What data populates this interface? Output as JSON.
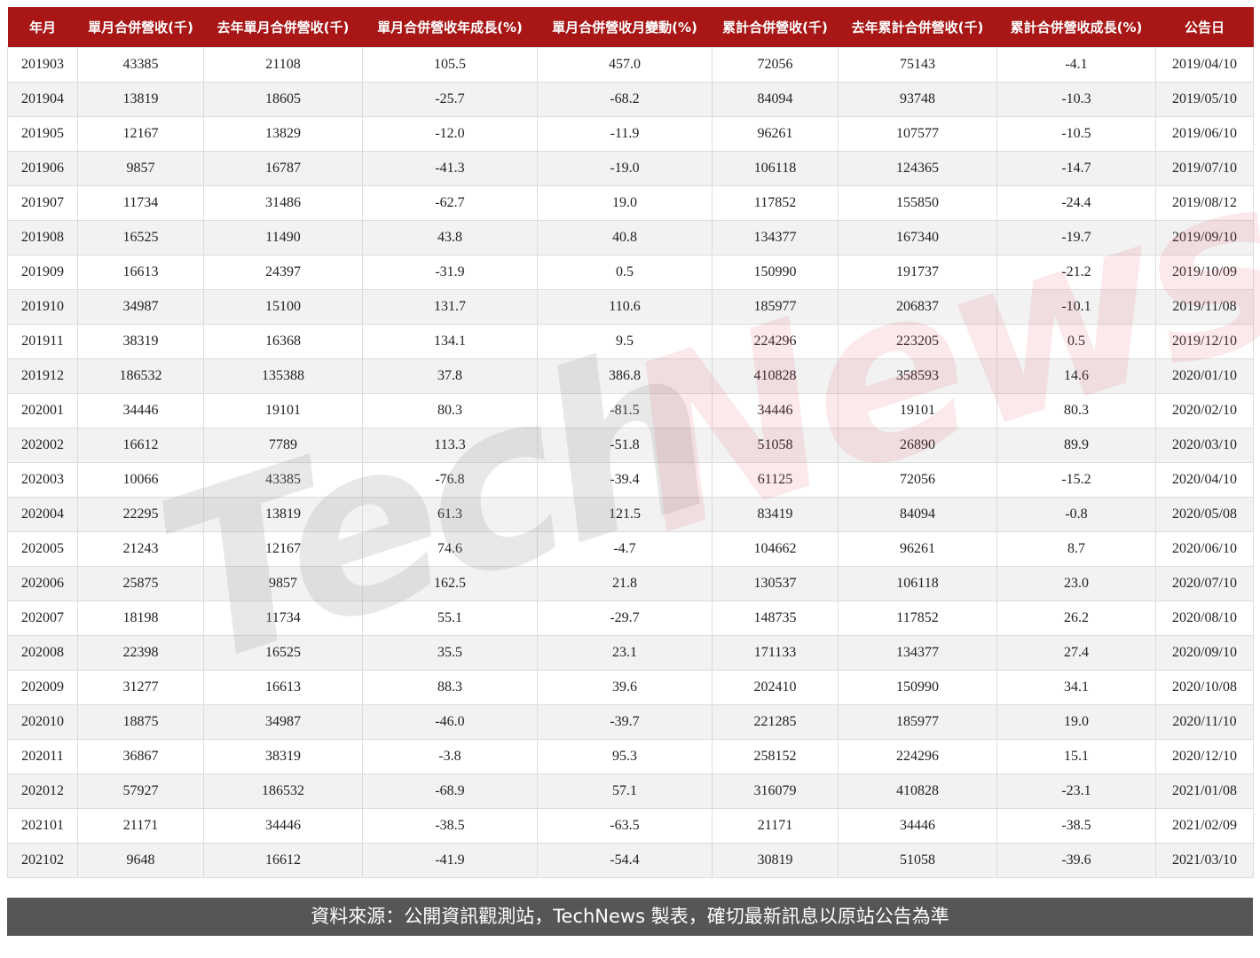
{
  "watermark": {
    "logo_text_part1": "Tech",
    "logo_text_part2": "News"
  },
  "table": {
    "headers": [
      "年月",
      "單月合併營收(千)",
      "去年單月合併營收(千)",
      "單月合併營收年成長(%)",
      "單月合併營收月變動(%)",
      "累計合併營收(千)",
      "去年累計合併營收(千)",
      "累計合併營收成長(%)",
      "公告日"
    ],
    "rows": [
      [
        "201903",
        "43385",
        "21108",
        "105.5",
        "457.0",
        "72056",
        "75143",
        "-4.1",
        "2019/04/10"
      ],
      [
        "201904",
        "13819",
        "18605",
        "-25.7",
        "-68.2",
        "84094",
        "93748",
        "-10.3",
        "2019/05/10"
      ],
      [
        "201905",
        "12167",
        "13829",
        "-12.0",
        "-11.9",
        "96261",
        "107577",
        "-10.5",
        "2019/06/10"
      ],
      [
        "201906",
        "9857",
        "16787",
        "-41.3",
        "-19.0",
        "106118",
        "124365",
        "-14.7",
        "2019/07/10"
      ],
      [
        "201907",
        "11734",
        "31486",
        "-62.7",
        "19.0",
        "117852",
        "155850",
        "-24.4",
        "2019/08/12"
      ],
      [
        "201908",
        "16525",
        "11490",
        "43.8",
        "40.8",
        "134377",
        "167340",
        "-19.7",
        "2019/09/10"
      ],
      [
        "201909",
        "16613",
        "24397",
        "-31.9",
        "0.5",
        "150990",
        "191737",
        "-21.2",
        "2019/10/09"
      ],
      [
        "201910",
        "34987",
        "15100",
        "131.7",
        "110.6",
        "185977",
        "206837",
        "-10.1",
        "2019/11/08"
      ],
      [
        "201911",
        "38319",
        "16368",
        "134.1",
        "9.5",
        "224296",
        "223205",
        "0.5",
        "2019/12/10"
      ],
      [
        "201912",
        "186532",
        "135388",
        "37.8",
        "386.8",
        "410828",
        "358593",
        "14.6",
        "2020/01/10"
      ],
      [
        "202001",
        "34446",
        "19101",
        "80.3",
        "-81.5",
        "34446",
        "19101",
        "80.3",
        "2020/02/10"
      ],
      [
        "202002",
        "16612",
        "7789",
        "113.3",
        "-51.8",
        "51058",
        "26890",
        "89.9",
        "2020/03/10"
      ],
      [
        "202003",
        "10066",
        "43385",
        "-76.8",
        "-39.4",
        "61125",
        "72056",
        "-15.2",
        "2020/04/10"
      ],
      [
        "202004",
        "22295",
        "13819",
        "61.3",
        "121.5",
        "83419",
        "84094",
        "-0.8",
        "2020/05/08"
      ],
      [
        "202005",
        "21243",
        "12167",
        "74.6",
        "-4.7",
        "104662",
        "96261",
        "8.7",
        "2020/06/10"
      ],
      [
        "202006",
        "25875",
        "9857",
        "162.5",
        "21.8",
        "130537",
        "106118",
        "23.0",
        "2020/07/10"
      ],
      [
        "202007",
        "18198",
        "11734",
        "55.1",
        "-29.7",
        "148735",
        "117852",
        "26.2",
        "2020/08/10"
      ],
      [
        "202008",
        "22398",
        "16525",
        "35.5",
        "23.1",
        "171133",
        "134377",
        "27.4",
        "2020/09/10"
      ],
      [
        "202009",
        "31277",
        "16613",
        "88.3",
        "39.6",
        "202410",
        "150990",
        "34.1",
        "2020/10/08"
      ],
      [
        "202010",
        "18875",
        "34987",
        "-46.0",
        "-39.7",
        "221285",
        "185977",
        "19.0",
        "2020/11/10"
      ],
      [
        "202011",
        "36867",
        "38319",
        "-3.8",
        "95.3",
        "258152",
        "224296",
        "15.1",
        "2020/12/10"
      ],
      [
        "202012",
        "57927",
        "186532",
        "-68.9",
        "57.1",
        "316079",
        "410828",
        "-23.1",
        "2021/01/08"
      ],
      [
        "202101",
        "21171",
        "34446",
        "-38.5",
        "-63.5",
        "21171",
        "34446",
        "-38.5",
        "2021/02/09"
      ],
      [
        "202102",
        "9648",
        "16612",
        "-41.9",
        "-54.4",
        "30819",
        "51058",
        "-39.6",
        "2021/03/10"
      ]
    ]
  },
  "footer": {
    "source": "資料來源：公開資訊觀測站，TechNews 製表，確切最新訊息以原站公告為準"
  },
  "colors": {
    "header_bg": "#a81616",
    "footer_bg": "#565656",
    "alt_row": "#f2f2f2"
  }
}
